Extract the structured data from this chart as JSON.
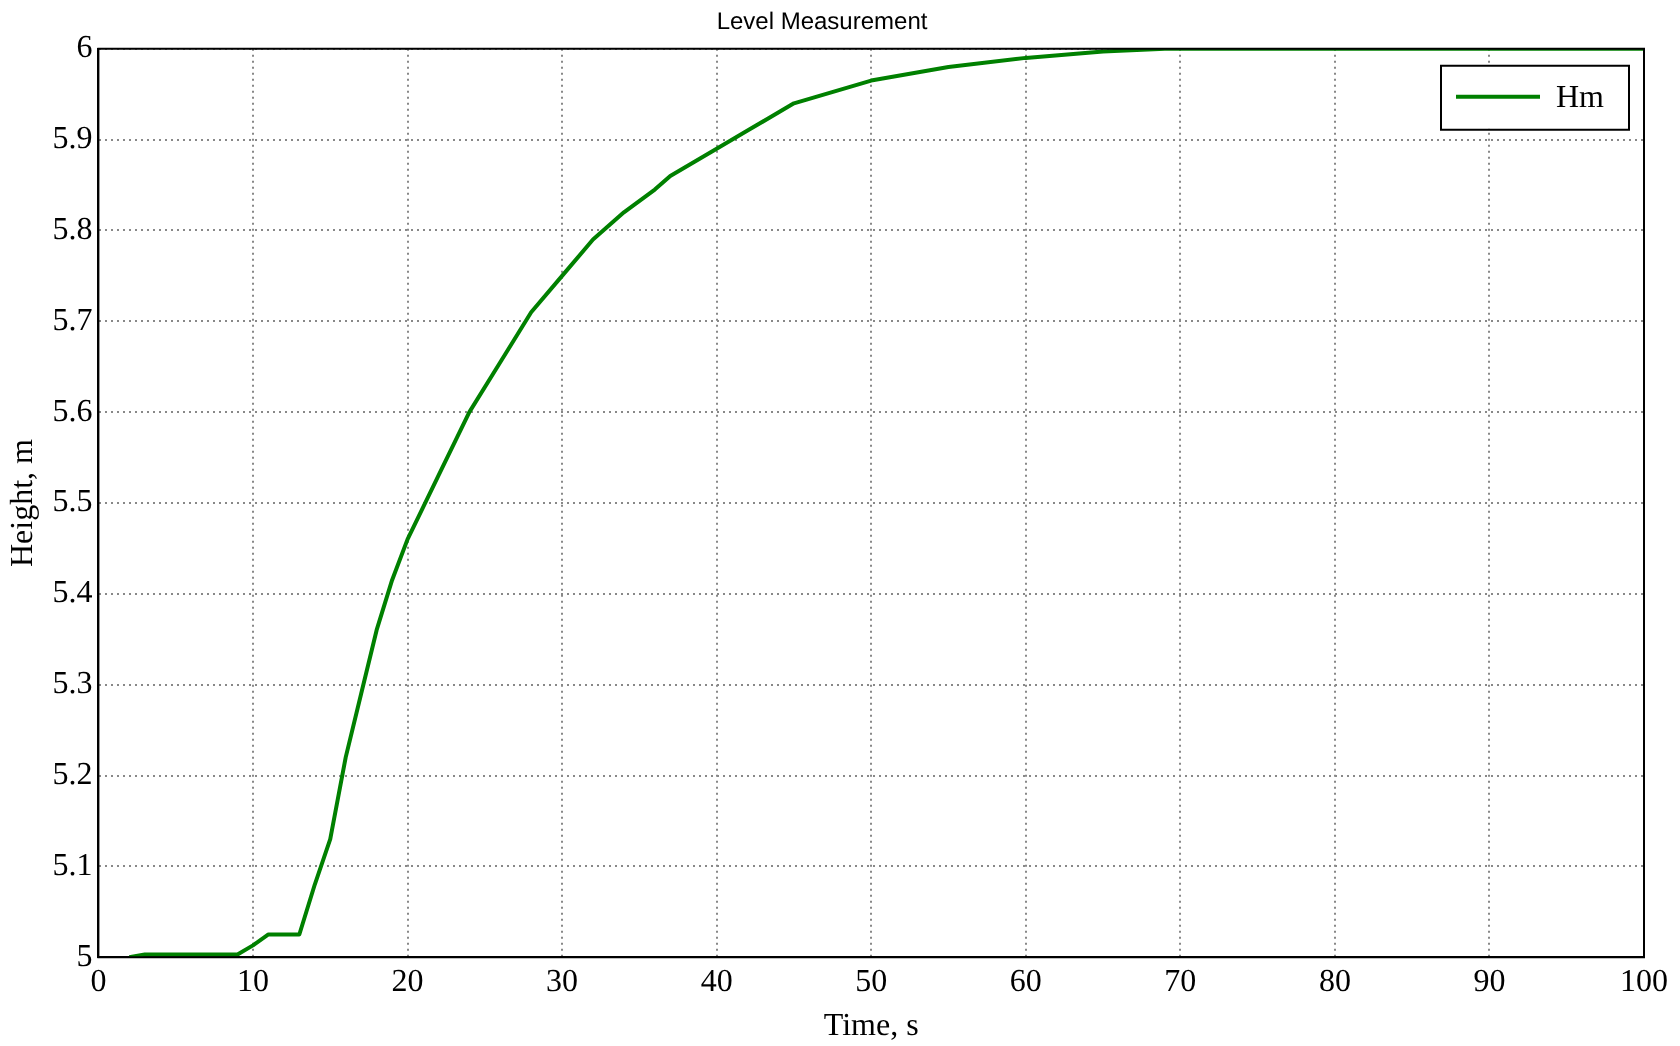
{
  "chart_data": {
    "type": "line",
    "title": "Level Measurement",
    "xlabel": "Time, s",
    "ylabel": "Height, m",
    "series": [
      {
        "name": "Hm",
        "color": "#008000",
        "x": [
          2,
          3,
          5,
          7,
          9,
          10,
          11,
          13,
          14,
          15,
          16,
          17,
          18,
          19,
          20,
          22,
          24,
          26,
          28,
          30,
          32,
          34,
          36,
          37,
          40,
          42,
          45,
          50,
          55,
          60,
          65,
          69,
          100
        ],
        "values": [
          5,
          5.003,
          5.003,
          5.003,
          5.003,
          5.013,
          5.025,
          5.025,
          5.08,
          5.13,
          5.22,
          5.29,
          5.36,
          5.415,
          5.46,
          5.53,
          5.6,
          5.655,
          5.71,
          5.75,
          5.79,
          5.82,
          5.845,
          5.86,
          5.89,
          5.91,
          5.94,
          5.965,
          5.98,
          5.99,
          5.997,
          6,
          6
        ]
      }
    ],
    "xlim": [
      0,
      100
    ],
    "xticks": [
      0,
      10,
      20,
      30,
      40,
      50,
      60,
      70,
      80,
      90,
      100
    ],
    "ylim": [
      5,
      6
    ],
    "yticks": [
      5,
      5.1,
      5.2,
      5.3,
      5.4,
      5.5,
      5.6,
      5.7,
      5.8,
      5.9,
      6
    ],
    "grid": true,
    "legend": "top right",
    "marker": "none",
    "line_style": "solid"
  }
}
